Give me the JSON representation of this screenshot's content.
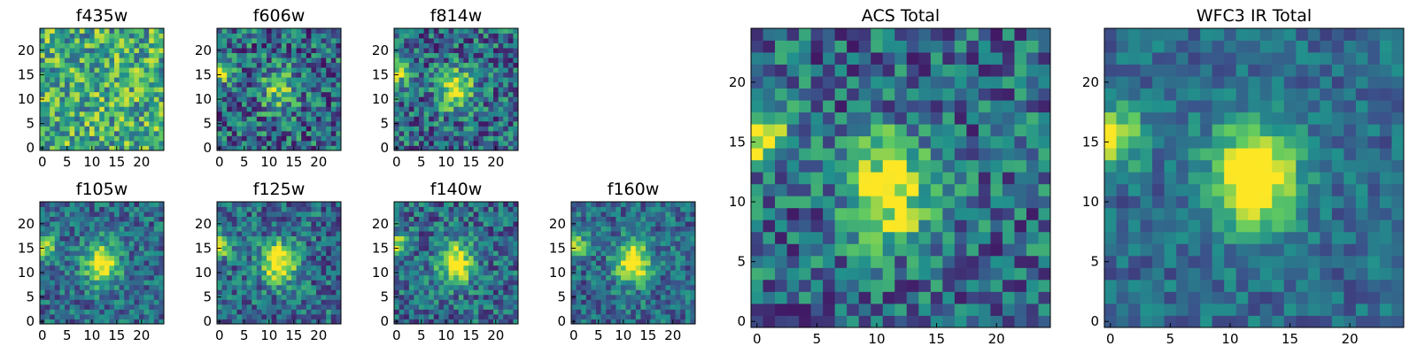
{
  "chart_data": [
    {
      "type": "heatmap",
      "title": "f435w",
      "grid_size": 25,
      "xlim": [
        0,
        24
      ],
      "ylim": [
        0,
        24
      ],
      "x_ticks": [
        0,
        5,
        10,
        15,
        20
      ],
      "y_ticks": [
        0,
        5,
        10,
        15,
        20
      ],
      "description_of_values": "mostly uniform noise, no central source",
      "peak": null,
      "source_strength": 0.0,
      "noise": 0.55,
      "side_source": 0.1,
      "seed": 11
    },
    {
      "type": "heatmap",
      "title": "f606w",
      "grid_size": 25,
      "xlim": [
        0,
        24
      ],
      "ylim": [
        0,
        24
      ],
      "x_ticks": [
        0,
        5,
        10,
        15,
        20
      ],
      "y_ticks": [
        0,
        5,
        10,
        15,
        20
      ],
      "peak": [
        12,
        12
      ],
      "source_strength": 0.45,
      "noise": 0.32,
      "side_source": 0.55,
      "seed": 23
    },
    {
      "type": "heatmap",
      "title": "f814w",
      "grid_size": 25,
      "xlim": [
        0,
        24
      ],
      "ylim": [
        0,
        24
      ],
      "x_ticks": [
        0,
        5,
        10,
        15,
        20
      ],
      "y_ticks": [
        0,
        5,
        10,
        15,
        20
      ],
      "peak": [
        12,
        12
      ],
      "source_strength": 0.6,
      "noise": 0.3,
      "side_source": 0.55,
      "seed": 37
    },
    {
      "type": "heatmap",
      "title": "f105w",
      "grid_size": 25,
      "xlim": [
        0,
        24
      ],
      "ylim": [
        0,
        24
      ],
      "x_ticks": [
        0,
        5,
        10,
        15,
        20
      ],
      "y_ticks": [
        0,
        5,
        10,
        15,
        20
      ],
      "peak": [
        12,
        12
      ],
      "source_strength": 0.7,
      "noise": 0.22,
      "side_source": 0.6,
      "seed": 41
    },
    {
      "type": "heatmap",
      "title": "f125w",
      "grid_size": 25,
      "xlim": [
        0,
        24
      ],
      "ylim": [
        0,
        24
      ],
      "x_ticks": [
        0,
        5,
        10,
        15,
        20
      ],
      "y_ticks": [
        0,
        5,
        10,
        15,
        20
      ],
      "peak": [
        12,
        12
      ],
      "source_strength": 0.75,
      "noise": 0.25,
      "side_source": 0.55,
      "seed": 53
    },
    {
      "type": "heatmap",
      "title": "f140w",
      "grid_size": 25,
      "xlim": [
        0,
        24
      ],
      "ylim": [
        0,
        24
      ],
      "x_ticks": [
        0,
        5,
        10,
        15,
        20
      ],
      "y_ticks": [
        0,
        5,
        10,
        15,
        20
      ],
      "peak": [
        12,
        12
      ],
      "source_strength": 0.72,
      "noise": 0.25,
      "side_source": 0.6,
      "seed": 67
    },
    {
      "type": "heatmap",
      "title": "f160w",
      "grid_size": 25,
      "xlim": [
        0,
        24
      ],
      "ylim": [
        0,
        24
      ],
      "x_ticks": [
        0,
        5,
        10,
        15,
        20
      ],
      "y_ticks": [
        0,
        5,
        10,
        15,
        20
      ],
      "peak": [
        12,
        12
      ],
      "source_strength": 0.75,
      "noise": 0.22,
      "side_source": 0.65,
      "seed": 79
    },
    {
      "type": "heatmap",
      "title": "ACS Total",
      "grid_size": 25,
      "xlim": [
        0,
        24
      ],
      "ylim": [
        0,
        24
      ],
      "x_ticks": [
        0,
        5,
        10,
        15,
        20
      ],
      "y_ticks": [
        0,
        5,
        10,
        15,
        20
      ],
      "peak": [
        11,
        11
      ],
      "source_strength": 0.7,
      "noise": 0.28,
      "side_source": 0.7,
      "seed": 97
    },
    {
      "type": "heatmap",
      "title": "WFC3 IR Total",
      "grid_size": 25,
      "xlim": [
        0,
        24
      ],
      "ylim": [
        0,
        24
      ],
      "x_ticks": [
        0,
        5,
        10,
        15,
        20
      ],
      "y_ticks": [
        0,
        5,
        10,
        15,
        20
      ],
      "peak": [
        12,
        12
      ],
      "source_strength": 0.85,
      "noise": 0.16,
      "side_source": 0.7,
      "seed": 113
    }
  ],
  "colormap": [
    "#440154",
    "#3b528b",
    "#21918c",
    "#5ec962",
    "#fde725"
  ]
}
